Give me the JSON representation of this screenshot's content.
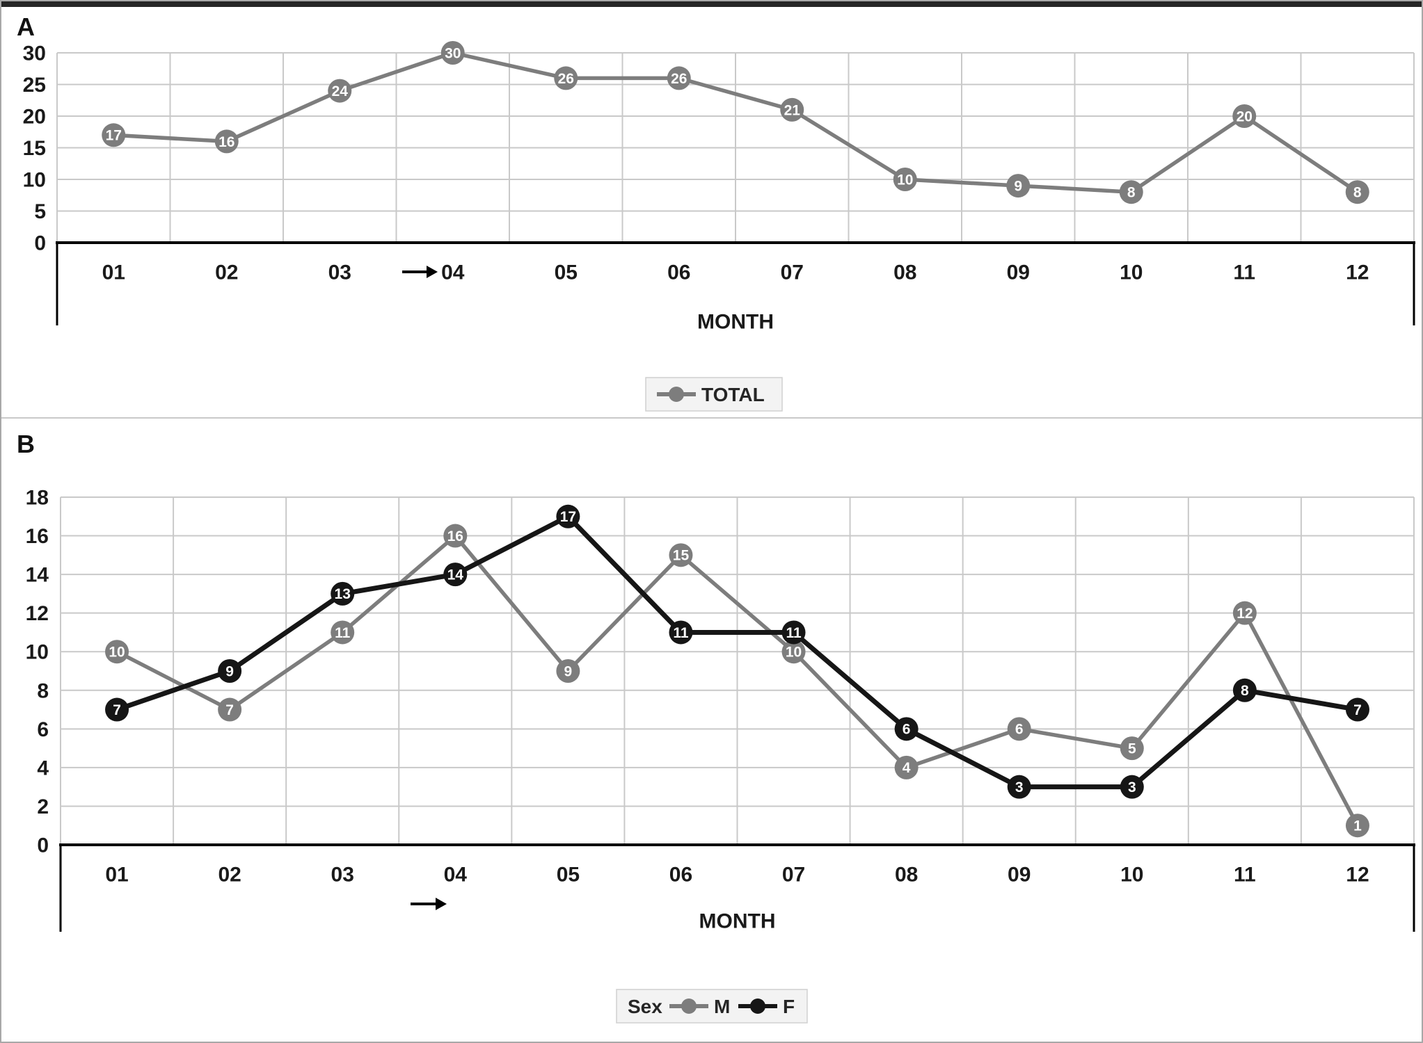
{
  "figure": {
    "description": "Two-panel monthly line chart figure",
    "panel_a_label": "A",
    "panel_b_label": "B"
  },
  "chart_data": [
    {
      "panel": "A",
      "type": "line",
      "title": "",
      "xlabel": "MONTH",
      "ylabel": "",
      "ylim": [
        0,
        30
      ],
      "ytick_step": 5,
      "grid": true,
      "categories": [
        "01",
        "02",
        "03",
        "04",
        "05",
        "06",
        "07",
        "08",
        "09",
        "10",
        "11",
        "12"
      ],
      "series": [
        {
          "name": "TOTAL",
          "color": "#7d7d7d",
          "data_labels": true,
          "values": [
            17,
            16,
            24,
            30,
            26,
            26,
            21,
            10,
            9,
            8,
            20,
            8
          ]
        }
      ],
      "legend": {
        "title": "",
        "position": "bottom-center",
        "items": [
          {
            "label": "TOTAL",
            "color": "#7d7d7d"
          }
        ]
      },
      "annotations": [
        {
          "type": "right-arrow",
          "category": "04",
          "position": "left-of-x-tick-label"
        }
      ]
    },
    {
      "panel": "B",
      "type": "line",
      "title": "",
      "xlabel": "MONTH",
      "ylabel": "",
      "ylim": [
        0,
        18
      ],
      "ytick_step": 2,
      "grid": true,
      "categories": [
        "01",
        "02",
        "03",
        "04",
        "05",
        "06",
        "07",
        "08",
        "09",
        "10",
        "11",
        "12"
      ],
      "series": [
        {
          "name": "M",
          "color": "#7d7d7d",
          "data_labels": true,
          "values": [
            10,
            7,
            11,
            16,
            9,
            15,
            10,
            4,
            6,
            5,
            12,
            1
          ]
        },
        {
          "name": "F",
          "color": "#161616",
          "data_labels": true,
          "values": [
            7,
            9,
            13,
            14,
            17,
            11,
            11,
            6,
            3,
            3,
            8,
            7
          ]
        }
      ],
      "legend": {
        "title": "Sex",
        "position": "bottom-center",
        "items": [
          {
            "label": "M",
            "color": "#7d7d7d"
          },
          {
            "label": "F",
            "color": "#161616"
          }
        ]
      },
      "annotations": [
        {
          "type": "right-arrow",
          "category": "04",
          "position": "below-x-tick-labels"
        }
      ]
    }
  ],
  "colors": {
    "series_gray": "#7d7d7d",
    "series_black": "#161616",
    "grid": "#c9c9c9",
    "axis": "#000000",
    "tick_text": "#1a1a1a",
    "legend_bg": "#f3f3f3",
    "legend_border": "#d0d0d0"
  }
}
